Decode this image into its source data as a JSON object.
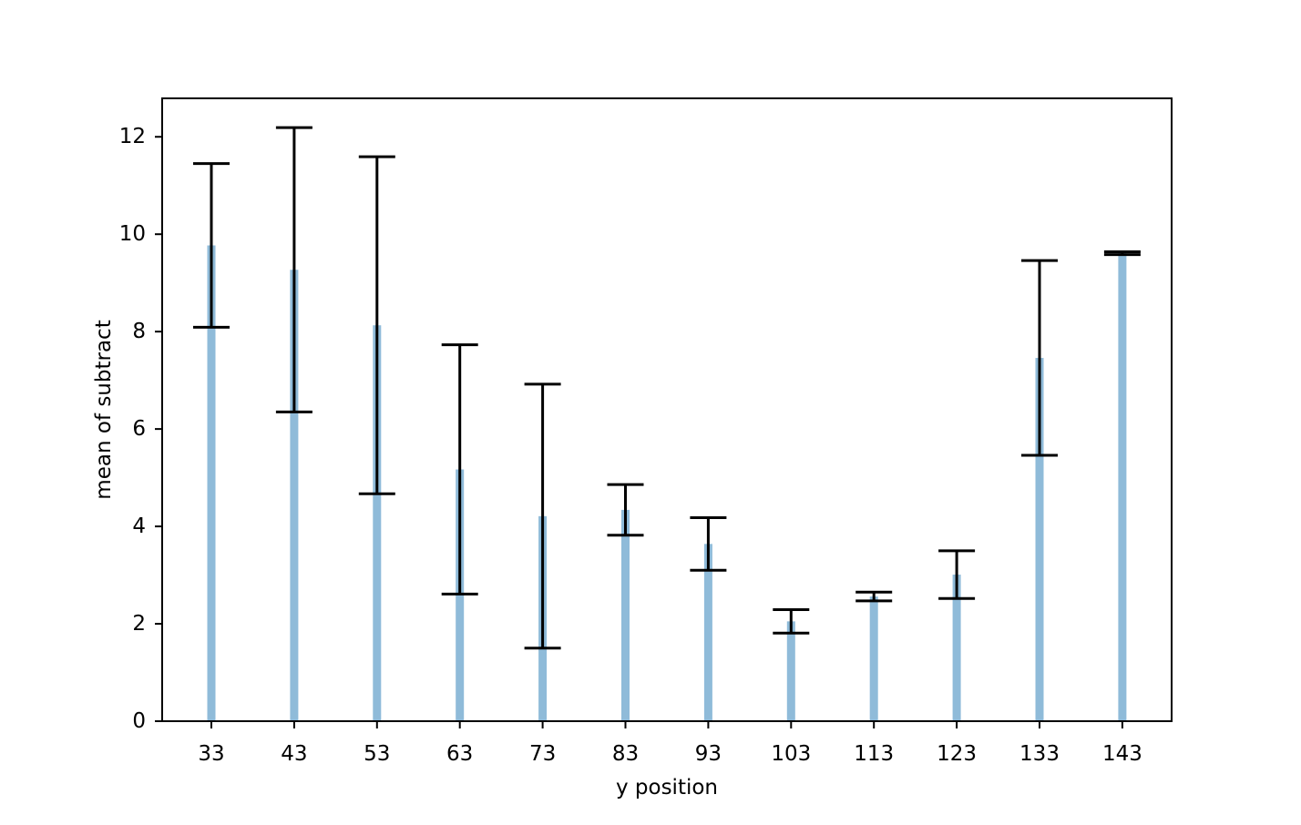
{
  "figure": {
    "background": "#ffffff"
  },
  "chart_data": {
    "type": "bar",
    "title": "",
    "xlabel": "y position",
    "ylabel": "mean of subtract",
    "categories": [
      33,
      43,
      53,
      63,
      73,
      83,
      93,
      103,
      113,
      123,
      133,
      143
    ],
    "series": [
      {
        "name": "mean of subtract",
        "values": [
          9.77,
          9.27,
          8.13,
          5.17,
          4.21,
          4.34,
          3.64,
          2.05,
          2.56,
          3.01,
          7.46,
          9.61
        ]
      }
    ],
    "error_bars": {
      "symmetric": true,
      "values": [
        1.68,
        2.92,
        3.46,
        2.56,
        2.71,
        0.52,
        0.54,
        0.24,
        0.09,
        0.49,
        2.0,
        0.03
      ]
    },
    "yticks": [
      0,
      2,
      4,
      6,
      8,
      10,
      12
    ],
    "ylim": [
      0,
      12.79
    ],
    "xlim_px_note": "categorical, evenly spaced",
    "grid": false,
    "legend": "none",
    "bar_color": "#8FBBD9",
    "error_color": "#000000",
    "spine_color": "#000000",
    "tick_label_color": "#000000"
  }
}
